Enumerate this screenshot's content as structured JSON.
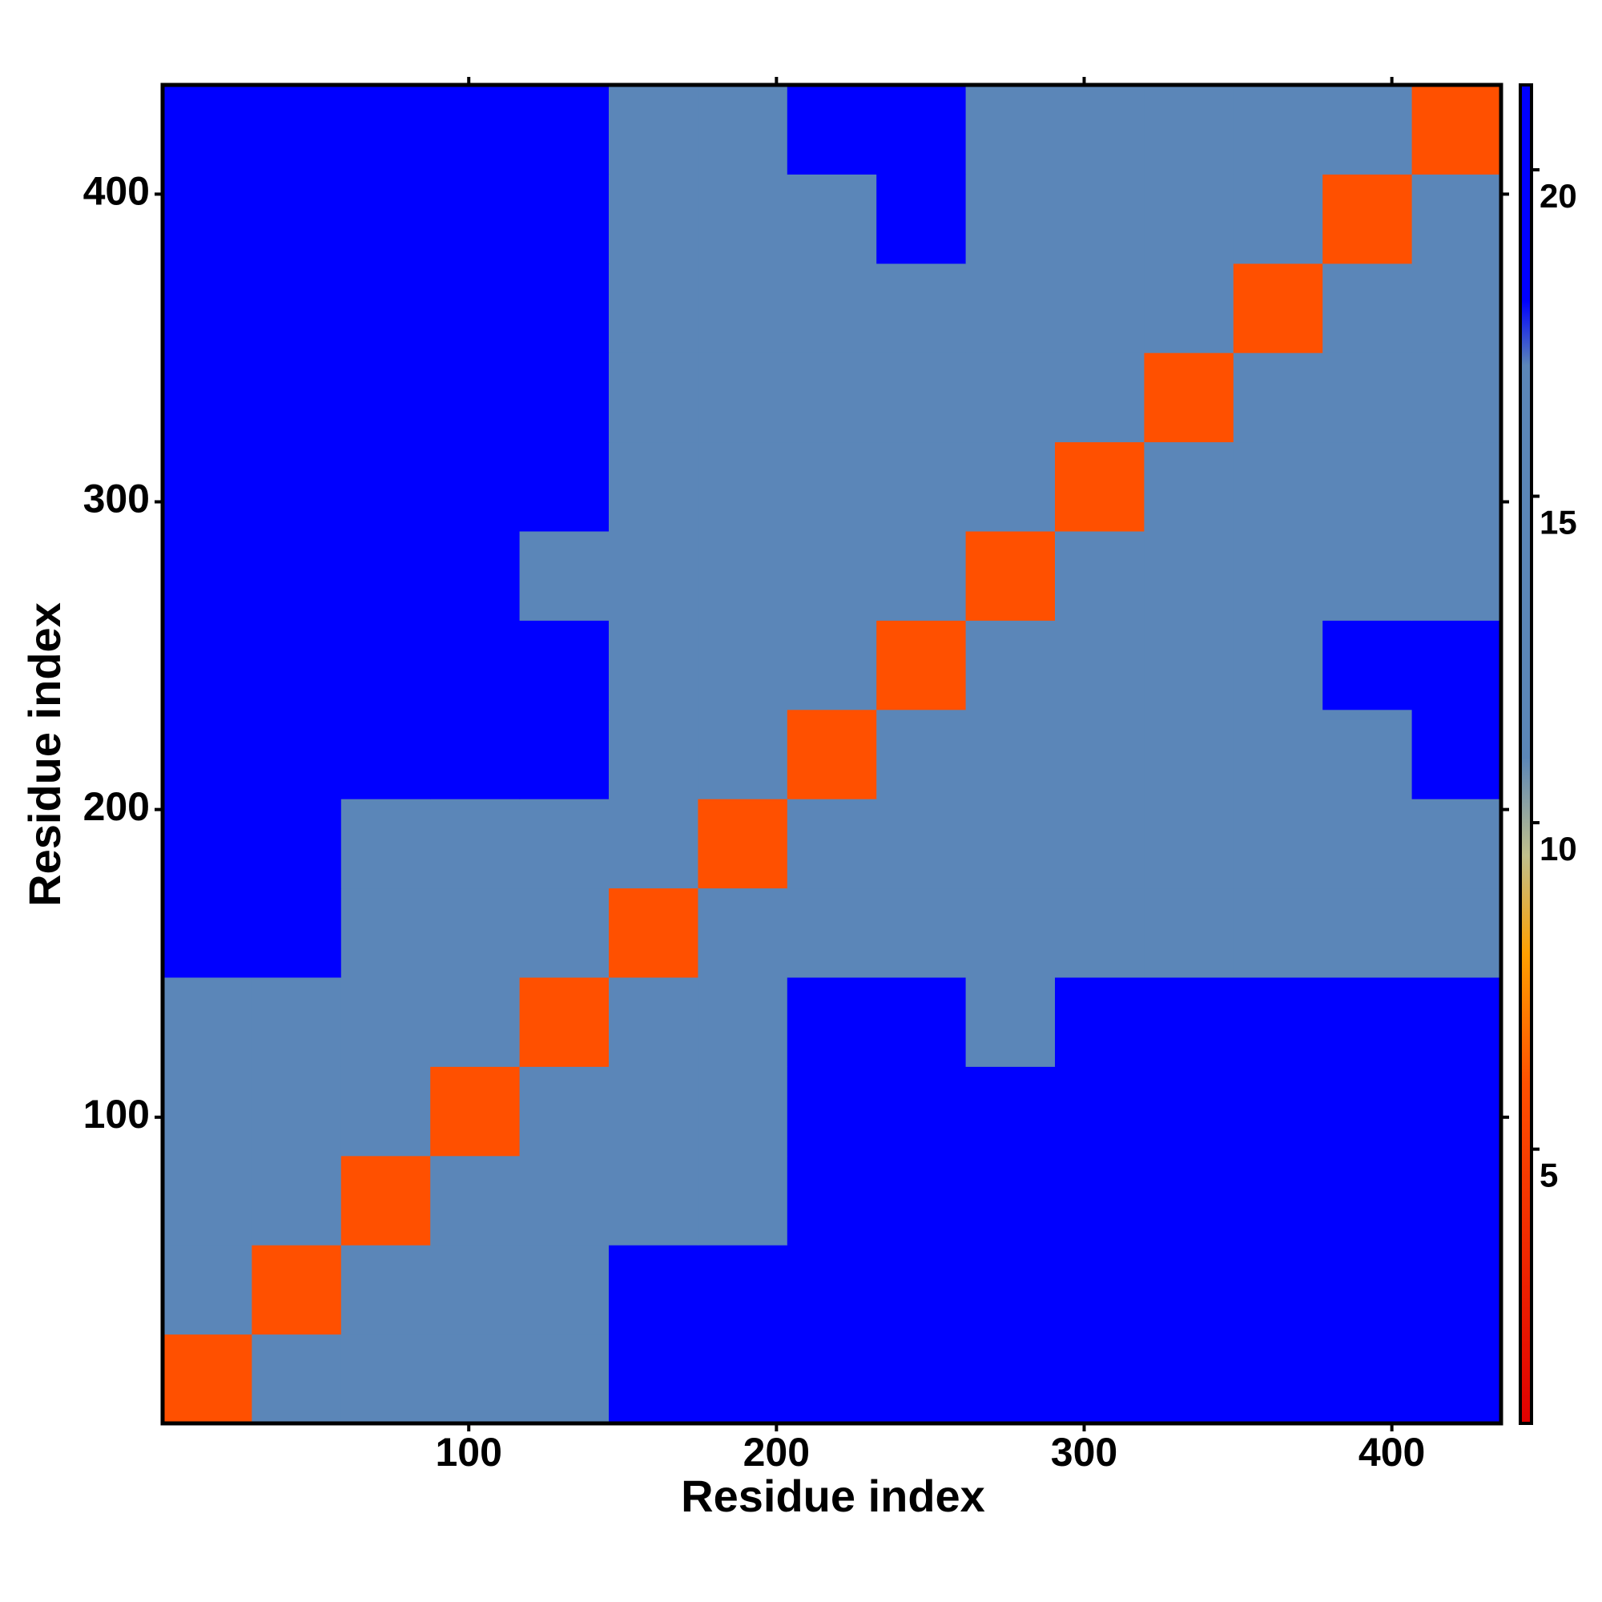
{
  "chart_data": {
    "type": "heatmap",
    "xlabel": "Residue index",
    "ylabel": "Residue index",
    "x_edges": [
      0.5,
      29.5,
      58.5,
      87.5,
      116.5,
      145.5,
      174.5,
      203.5,
      232.5,
      261.5,
      290.5,
      319.5,
      348.5,
      377.5,
      406.5,
      435.5
    ],
    "y_edges": [
      0.5,
      29.5,
      58.5,
      87.5,
      116.5,
      145.5,
      174.5,
      203.5,
      232.5,
      261.5,
      290.5,
      319.5,
      348.5,
      377.5,
      406.5,
      435.5
    ],
    "z": [
      [
        6,
        12,
        13,
        14,
        16,
        19,
        19,
        20,
        21,
        20,
        21,
        21,
        21,
        21,
        21
      ],
      [
        12,
        6,
        12,
        13,
        15,
        18,
        18,
        19,
        20,
        19,
        20,
        20,
        20,
        21,
        21
      ],
      [
        13,
        12,
        6,
        12,
        14,
        17,
        17,
        19,
        20,
        19,
        19,
        20,
        20,
        21,
        21
      ],
      [
        14,
        13,
        12,
        6,
        12,
        16,
        17,
        19,
        20,
        18,
        19,
        19,
        20,
        21,
        21
      ],
      [
        16,
        15,
        14,
        12,
        6,
        14,
        16,
        18,
        19,
        17,
        18,
        18,
        19,
        20,
        21
      ],
      [
        19,
        18,
        17,
        16,
        14,
        6,
        12,
        14,
        16,
        15,
        16,
        16,
        16,
        16,
        17
      ],
      [
        19,
        18,
        17,
        17,
        16,
        12,
        6,
        12,
        14,
        14,
        15,
        15,
        16,
        12,
        14
      ],
      [
        20,
        19,
        19,
        19,
        18,
        14,
        12,
        6,
        13,
        13,
        16,
        16,
        17,
        17,
        18
      ],
      [
        21,
        20,
        20,
        20,
        19,
        16,
        14,
        13,
        6,
        11,
        15,
        16,
        17,
        18,
        18
      ],
      [
        20,
        19,
        19,
        18,
        17,
        15,
        14,
        13,
        11,
        6,
        12,
        14,
        15,
        16,
        17
      ],
      [
        21,
        20,
        19,
        19,
        18,
        16,
        15,
        16,
        15,
        12,
        6,
        11,
        12,
        14,
        15
      ],
      [
        21,
        20,
        20,
        19,
        18,
        16,
        15,
        16,
        16,
        14,
        11,
        6,
        11,
        12,
        14
      ],
      [
        21,
        20,
        20,
        20,
        19,
        16,
        16,
        17,
        17,
        15,
        12,
        11,
        6,
        11,
        12
      ],
      [
        21,
        21,
        21,
        21,
        20,
        16,
        12,
        17,
        18,
        16,
        14,
        12,
        11,
        6,
        12
      ],
      [
        21,
        21,
        21,
        21,
        21,
        17,
        14,
        18,
        18,
        17,
        15,
        14,
        12,
        12,
        6
      ]
    ],
    "xlim": [
      0.5,
      435.5
    ],
    "ylim": [
      0.5,
      435.5
    ],
    "xticks": [
      100,
      200,
      300,
      400
    ],
    "yticks": [
      100,
      200,
      300,
      400
    ],
    "clim": [
      0.8,
      21.3
    ],
    "cticks": [
      5,
      10,
      15,
      20
    ],
    "colorscale": [
      [
        0.8,
        "#e00000"
      ],
      [
        6,
        "#ff5000"
      ],
      [
        8,
        "#ffa000"
      ],
      [
        9.5,
        "#c0c08c"
      ],
      [
        11,
        "#5b86b8"
      ],
      [
        17,
        "#5b86b8"
      ],
      [
        18,
        "#0000ff"
      ],
      [
        21.3,
        "#0000ff"
      ]
    ]
  }
}
